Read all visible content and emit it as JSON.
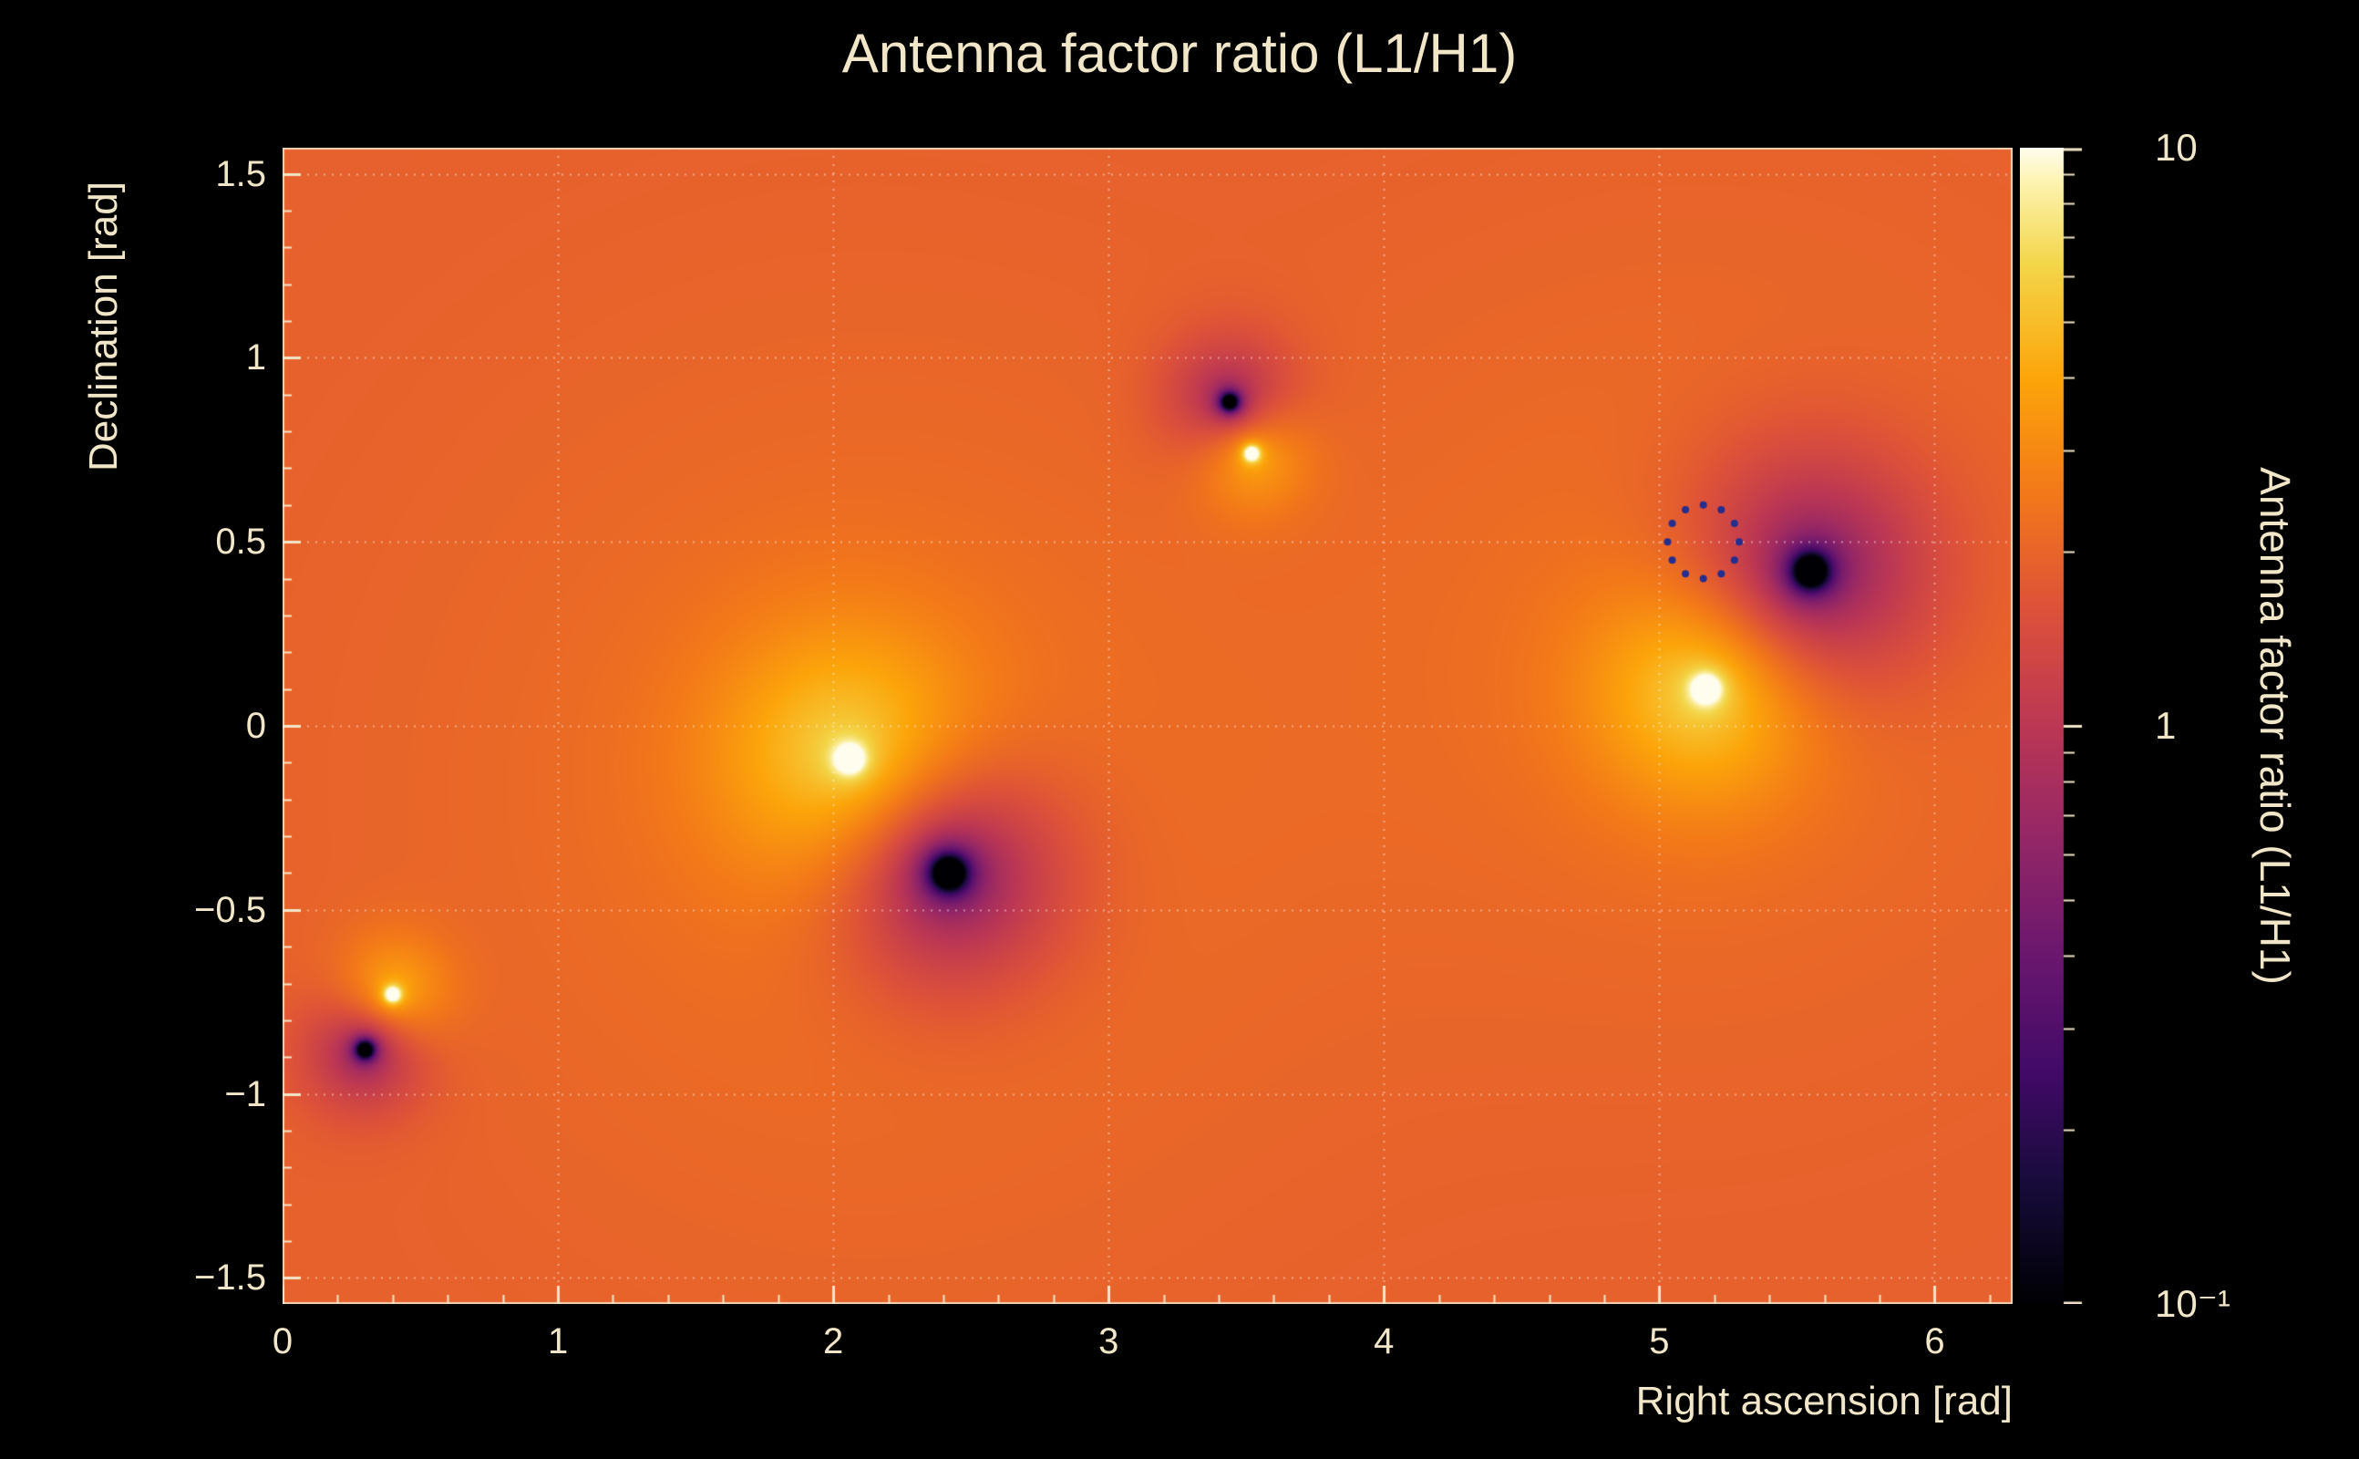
{
  "page": {
    "background": "#000000",
    "foreground": "#f2e6c8"
  },
  "chart_data": {
    "type": "heatmap",
    "title": "Antenna factor ratio (L1/H1)",
    "xlabel": "Right ascension [rad]",
    "ylabel": "Declination [rad]",
    "zlabel": "Antenna factor ratio (L1/H1)",
    "x_range": [
      0,
      6.2832
    ],
    "y_range": [
      -1.5708,
      1.5708
    ],
    "z_range": [
      0.1,
      10
    ],
    "z_scale": "log10",
    "x_ticks": [
      0,
      1,
      2,
      3,
      4,
      5,
      6
    ],
    "x_tick_labels": [
      "0",
      "1",
      "2",
      "3",
      "4",
      "5",
      "6"
    ],
    "x_minor_step": 0.2,
    "y_ticks": [
      -1.5,
      -1,
      -0.5,
      0,
      0.5,
      1,
      1.5
    ],
    "y_tick_labels": [
      "−1.5",
      "−1",
      "−0.5",
      "0",
      "0.5",
      "1",
      "1.5"
    ],
    "y_minor_step": 0.1,
    "colorbar_ticks": [
      {
        "value": 10,
        "label": "10"
      },
      {
        "value": 1,
        "label": "1"
      },
      {
        "value": 0.1,
        "label": "10⁻¹"
      }
    ],
    "background_log10": 0.28,
    "features": [
      {
        "name": "maximum-1",
        "x": 0.4,
        "y": -0.73,
        "amp": 2.2,
        "s": 0.014,
        "halo": 0.3,
        "sigma": 0.15
      },
      {
        "name": "minimum-1",
        "x": 0.3,
        "y": -0.88,
        "amp": -2.4,
        "s": 0.022,
        "halo": -0.32,
        "sigma": 0.16
      },
      {
        "name": "maximum-2",
        "x": 2.06,
        "y": -0.09,
        "amp": 2.4,
        "s": 0.022,
        "halo": 0.4,
        "sigma": 0.34
      },
      {
        "name": "minimum-2",
        "x": 2.42,
        "y": -0.4,
        "amp": -2.8,
        "s": 0.042,
        "halo": -0.45,
        "sigma": 0.3
      },
      {
        "name": "maximum-3",
        "x": 3.52,
        "y": 0.74,
        "amp": 2.2,
        "s": 0.014,
        "halo": 0.3,
        "sigma": 0.15
      },
      {
        "name": "minimum-3",
        "x": 3.44,
        "y": 0.88,
        "amp": -2.4,
        "s": 0.022,
        "halo": -0.32,
        "sigma": 0.17
      },
      {
        "name": "maximum-4",
        "x": 5.17,
        "y": 0.1,
        "amp": 2.4,
        "s": 0.022,
        "halo": 0.4,
        "sigma": 0.3
      },
      {
        "name": "minimum-4",
        "x": 5.55,
        "y": 0.42,
        "amp": -2.8,
        "s": 0.04,
        "halo": -0.45,
        "sigma": 0.32
      },
      {
        "name": "broad-glow-a",
        "x": 2.15,
        "y": -0.2,
        "amp": 0,
        "s": 0.1,
        "halo": 0.09,
        "sigma": 1.1
      },
      {
        "name": "broad-glow-b",
        "x": 5.2,
        "y": 0.25,
        "amp": 0,
        "s": 0.1,
        "halo": 0.08,
        "sigma": 0.95
      }
    ],
    "localization_points": {
      "color": "#232e8f",
      "points": [
        [
          5.29,
          0.5
        ],
        [
          5.273,
          0.55
        ],
        [
          5.225,
          0.587
        ],
        [
          5.16,
          0.6
        ],
        [
          5.095,
          0.587
        ],
        [
          5.047,
          0.55
        ],
        [
          5.03,
          0.5
        ],
        [
          5.047,
          0.45
        ],
        [
          5.095,
          0.413
        ],
        [
          5.16,
          0.4
        ],
        [
          5.225,
          0.413
        ],
        [
          5.273,
          0.45
        ]
      ]
    },
    "colormap_stops": [
      [
        0.0,
        "#000004"
      ],
      [
        0.1,
        "#160b39"
      ],
      [
        0.2,
        "#420a68"
      ],
      [
        0.3,
        "#6a176e"
      ],
      [
        0.4,
        "#932667"
      ],
      [
        0.5,
        "#bc3754"
      ],
      [
        0.6,
        "#dd513a"
      ],
      [
        0.7,
        "#f37819"
      ],
      [
        0.8,
        "#fca50a"
      ],
      [
        0.9,
        "#f3d64a"
      ],
      [
        0.97,
        "#fdf3b0"
      ],
      [
        1.0,
        "#fffdee"
      ]
    ],
    "grid": {
      "color": "rgba(255,255,255,0.45)",
      "dash": [
        2,
        7
      ]
    },
    "tick_color": "#f2e6c8"
  }
}
